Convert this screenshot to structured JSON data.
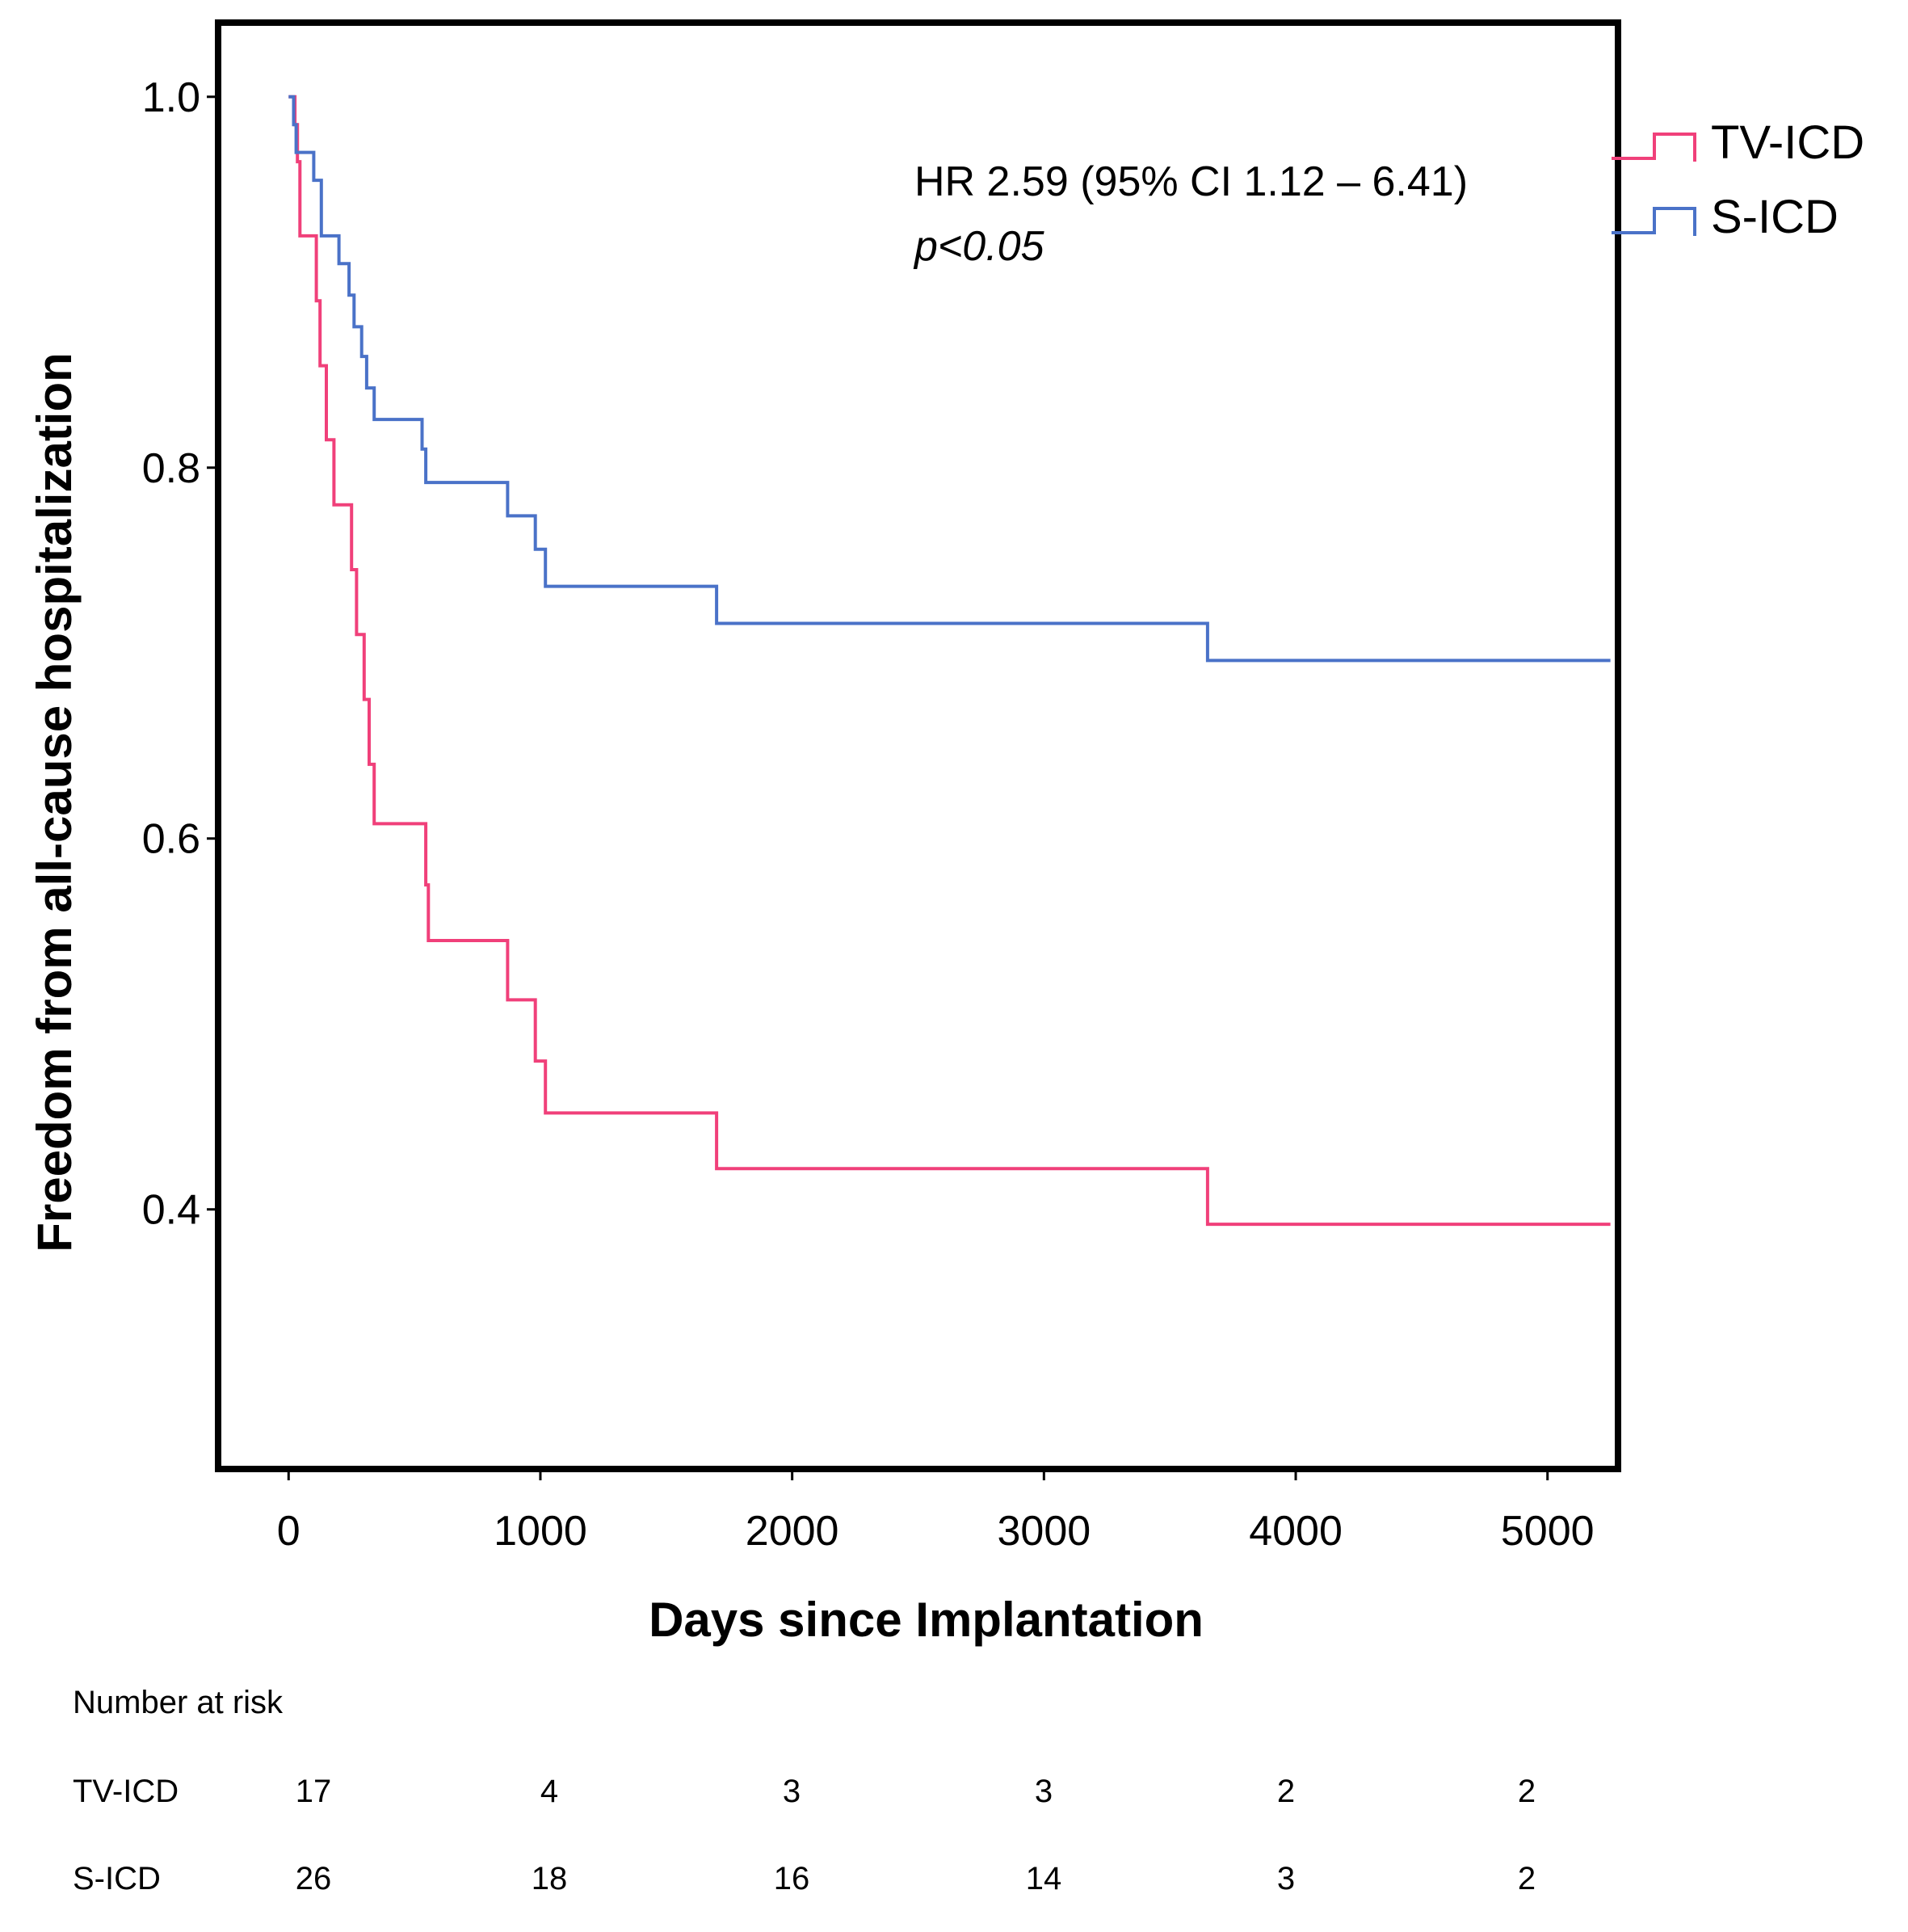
{
  "chart_data": {
    "type": "line",
    "subtype": "kaplan-meier step",
    "title": "",
    "xlabel": "Days since Implantation",
    "ylabel": "Freedom from all-cause hospitalization",
    "xlim": [
      -280,
      5280
    ],
    "ylim": [
      0.26,
      1.04
    ],
    "x_ticks": [
      0,
      1000,
      2000,
      3000,
      4000,
      5000
    ],
    "x_tick_labels": [
      "0",
      "1000",
      "2000",
      "3000",
      "4000",
      "5000"
    ],
    "y_ticks": [
      0.4,
      0.6,
      0.8,
      1.0
    ],
    "y_tick_labels": [
      "0.4",
      "0.6",
      "0.8",
      "1.0"
    ],
    "grid": false,
    "legend_position": "right, outside top",
    "annotation": {
      "hr": "HR 2.59 (95% CI 1.12 – 6.41)",
      "p": "p<0.05"
    },
    "series": [
      {
        "name": "TV-ICD",
        "color": "#f0407a",
        "x": [
          0,
          25,
          35,
          45,
          80,
          110,
          125,
          150,
          180,
          220,
          250,
          270,
          300,
          320,
          340,
          530,
          545,
          555,
          870,
          980,
          1020,
          1700,
          3650,
          5250
        ],
        "y": [
          1.0,
          0.985,
          0.965,
          0.925,
          0.925,
          0.89,
          0.855,
          0.815,
          0.78,
          0.78,
          0.745,
          0.71,
          0.675,
          0.64,
          0.608,
          0.608,
          0.575,
          0.545,
          0.513,
          0.48,
          0.452,
          0.422,
          0.392,
          0.392
        ]
      },
      {
        "name": "S-ICD",
        "color": "#4a72c8",
        "x": [
          0,
          20,
          30,
          40,
          55,
          100,
          130,
          170,
          200,
          240,
          260,
          290,
          310,
          320,
          340,
          530,
          545,
          870,
          980,
          1020,
          1700,
          3650,
          5250
        ],
        "y": [
          1.0,
          0.985,
          0.97,
          0.97,
          0.97,
          0.955,
          0.925,
          0.925,
          0.91,
          0.893,
          0.876,
          0.86,
          0.843,
          0.843,
          0.826,
          0.81,
          0.792,
          0.774,
          0.756,
          0.736,
          0.716,
          0.696,
          0.696
        ]
      }
    ]
  },
  "risk_table": {
    "heading": "Number at risk",
    "rows": [
      {
        "label": "TV-ICD",
        "values": [
          "17",
          "4",
          "3",
          "3",
          "2",
          "2"
        ]
      },
      {
        "label": "S-ICD",
        "values": [
          "26",
          "18",
          "16",
          "14",
          "3",
          "2"
        ]
      }
    ]
  }
}
